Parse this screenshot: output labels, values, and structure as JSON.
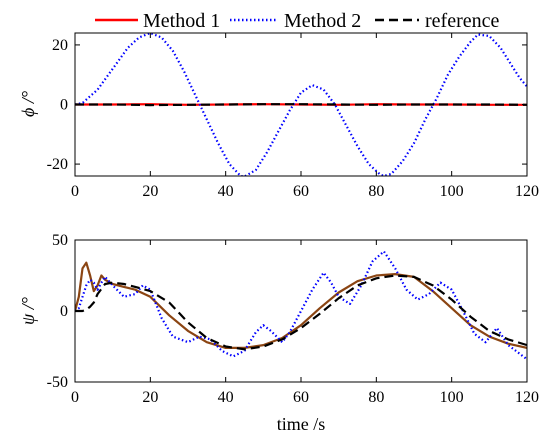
{
  "legend": {
    "placement": "top",
    "entries": [
      {
        "name": "Method 1",
        "color": "#ff0000",
        "style": "solid"
      },
      {
        "name": "Method 2",
        "color": "#0000ff",
        "style": "dotted"
      },
      {
        "name": "reference",
        "color": "#000000",
        "style": "dashed"
      }
    ]
  },
  "chart_data": [
    {
      "type": "line",
      "ylabel": "ϕ /°",
      "xlabel": "",
      "xlim": [
        0,
        120
      ],
      "ylim": [
        -24,
        24
      ],
      "xticks": [
        0,
        20,
        40,
        60,
        80,
        100,
        120
      ],
      "yticks": [
        -20,
        0,
        20
      ],
      "grid": false,
      "series": [
        {
          "name": "Method 1",
          "color": "#ff0000",
          "style": "solid",
          "x": [
            0,
            10,
            20,
            30,
            40,
            50,
            60,
            70,
            80,
            90,
            100,
            110,
            120
          ],
          "y": [
            0,
            0,
            0.1,
            -0.1,
            0,
            0.1,
            0,
            -0.1,
            0.1,
            0,
            0,
            -0.1,
            -0.1
          ]
        },
        {
          "name": "Method 2",
          "color": "#0000ff",
          "style": "dotted",
          "x": [
            0,
            2,
            6,
            10,
            14,
            17,
            20,
            23,
            26,
            29,
            32,
            35,
            38,
            41,
            44,
            45,
            48,
            51,
            54,
            57,
            60,
            63,
            66,
            69,
            72,
            75,
            78,
            81,
            82,
            84,
            87,
            90,
            93,
            96,
            99,
            102,
            105,
            107,
            110,
            113,
            116,
            118,
            120
          ],
          "y": [
            0,
            0.5,
            5,
            12,
            19,
            22.5,
            24,
            22.5,
            18,
            11,
            3,
            -5,
            -13,
            -20,
            -24,
            -24.2,
            -22,
            -16,
            -9,
            -2,
            4,
            6.5,
            5,
            0,
            -7,
            -14,
            -20,
            -23.5,
            -24,
            -23.3,
            -19,
            -13,
            -5,
            2,
            10,
            16,
            21,
            23.5,
            23,
            19,
            13,
            9,
            6
          ]
        },
        {
          "name": "reference",
          "color": "#000000",
          "style": "dashed",
          "x": [
            0,
            10,
            20,
            30,
            40,
            50,
            60,
            70,
            80,
            90,
            100,
            110,
            120
          ],
          "y": [
            0,
            0,
            -0.2,
            -0.1,
            0,
            0.1,
            0.1,
            0,
            -0.1,
            0,
            0,
            0,
            -0.1
          ]
        }
      ]
    },
    {
      "type": "line",
      "ylabel": "ψ /°",
      "xlabel": "time /s",
      "xlim": [
        0,
        120
      ],
      "ylim": [
        -50,
        50
      ],
      "xticks": [
        0,
        20,
        40,
        60,
        80,
        100,
        120
      ],
      "yticks": [
        -50,
        0,
        50
      ],
      "grid": false,
      "series": [
        {
          "name": "Method 1",
          "color": "#8b4513",
          "style": "solid",
          "x": [
            0,
            1,
            2,
            3,
            4,
            5,
            6,
            7,
            8,
            10,
            13,
            16,
            20,
            25,
            30,
            35,
            40,
            45,
            50,
            55,
            60,
            65,
            70,
            75,
            80,
            85,
            90,
            95,
            100,
            105,
            110,
            115,
            120
          ],
          "y": [
            0,
            10,
            30,
            34,
            25,
            14,
            18,
            25,
            22,
            19,
            17,
            15,
            10,
            -3,
            -14,
            -22,
            -26,
            -26,
            -24,
            -19,
            -10,
            2,
            13,
            21,
            25,
            26,
            24,
            14,
            2,
            -10,
            -18,
            -23,
            -26
          ]
        },
        {
          "name": "Method 2",
          "color": "#0000ff",
          "style": "dotted",
          "x": [
            0,
            1,
            2,
            3,
            4,
            5,
            6,
            7,
            8,
            10,
            13,
            16,
            18,
            20,
            23,
            26,
            30,
            33,
            36,
            39,
            42,
            45,
            48,
            50,
            52,
            55,
            57,
            60,
            63,
            66,
            68,
            70,
            73,
            76,
            79,
            82,
            85,
            88,
            91,
            94,
            97,
            100,
            103,
            106,
            109,
            112,
            115,
            118,
            120
          ],
          "y": [
            0,
            2,
            10,
            18,
            22,
            20,
            15,
            20,
            24,
            18,
            10,
            12,
            18,
            15,
            -5,
            -18,
            -22,
            -18,
            -20,
            -28,
            -32,
            -28,
            -15,
            -10,
            -14,
            -22,
            -15,
            0,
            15,
            27,
            20,
            10,
            5,
            18,
            35,
            42,
            30,
            15,
            8,
            12,
            20,
            15,
            0,
            -16,
            -22,
            -12,
            -24,
            -30,
            -34
          ]
        },
        {
          "name": "reference",
          "color": "#000000",
          "style": "dashed",
          "x": [
            0,
            1,
            2,
            3,
            4,
            5,
            6,
            8,
            10,
            13,
            16,
            20,
            25,
            30,
            35,
            40,
            45,
            50,
            55,
            60,
            65,
            70,
            75,
            80,
            85,
            90,
            95,
            100,
            105,
            110,
            115,
            120
          ],
          "y": [
            0,
            0,
            0,
            1,
            3,
            6,
            12,
            19,
            20,
            19,
            17,
            14,
            6,
            -8,
            -19,
            -25,
            -27,
            -25,
            -20,
            -12,
            -2,
            9,
            18,
            23,
            25,
            24,
            18,
            8,
            -4,
            -14,
            -20,
            -24
          ]
        }
      ]
    }
  ]
}
